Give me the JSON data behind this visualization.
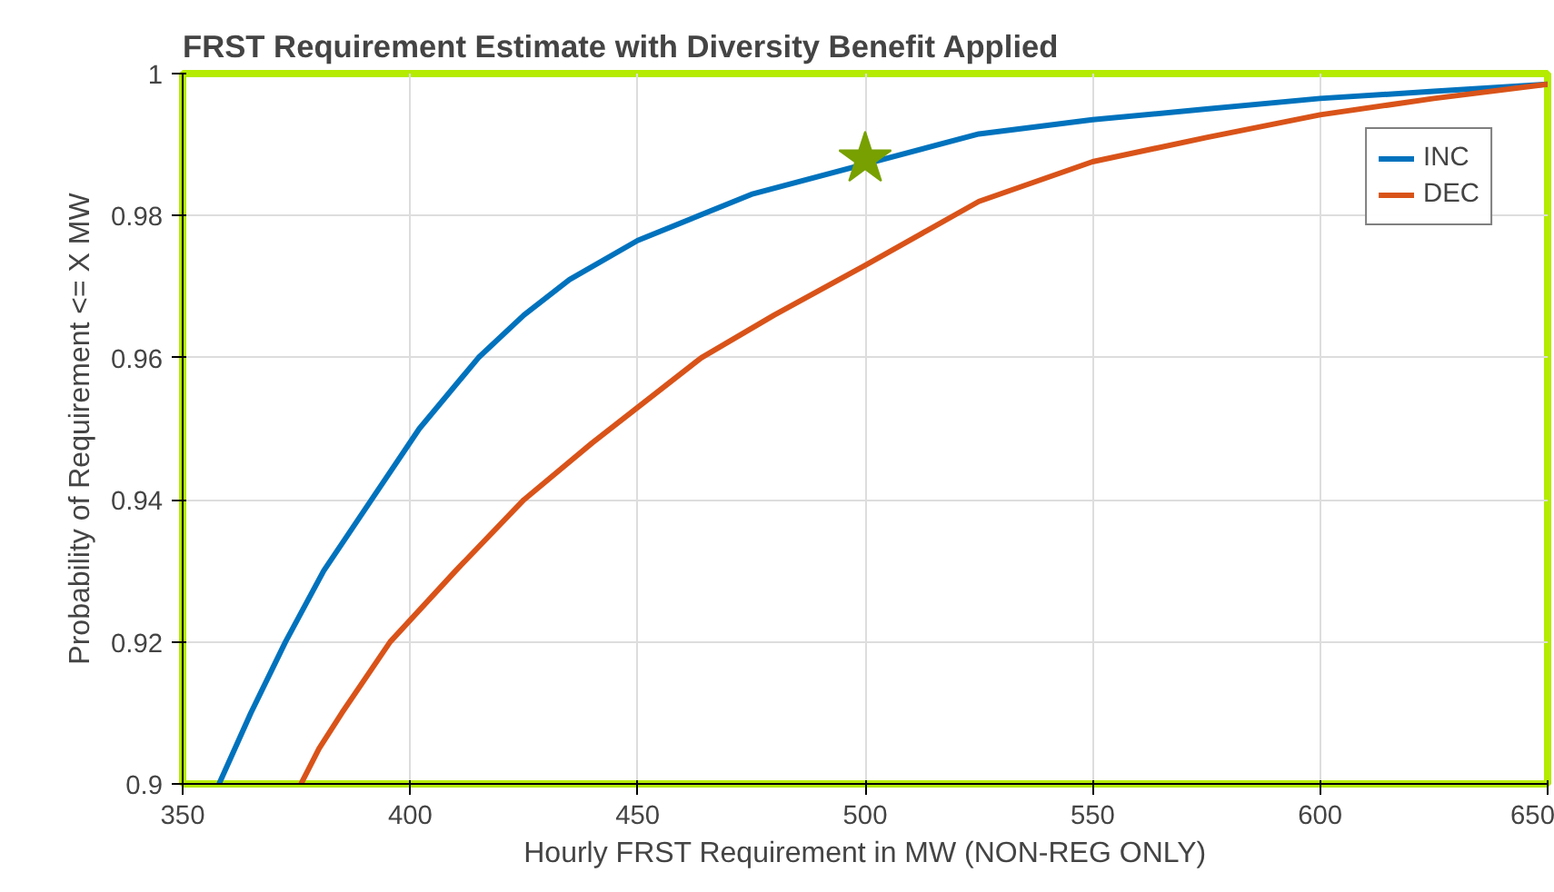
{
  "chart_data": {
    "type": "line",
    "title": "FRST Requirement Estimate with Diversity Benefit Applied",
    "xlabel": "Hourly FRST Requirement in MW (NON-REG ONLY)",
    "ylabel": "Probability of Requirement <= X MW",
    "xlim": [
      350,
      650
    ],
    "ylim": [
      0.9,
      1
    ],
    "xticks": [
      350,
      400,
      450,
      500,
      550,
      600,
      650
    ],
    "yticks": [
      {
        "value": 0.9,
        "label": "0.9"
      },
      0.92,
      0.94,
      0.96,
      0.98,
      {
        "value": 1,
        "label": "1"
      }
    ],
    "grid": true,
    "legend": "top right",
    "series": [
      {
        "name": "INC",
        "color": "#0072bd",
        "x": [
          358,
          365,
          372.6,
          381,
          391.5,
          402,
          415,
          425,
          435,
          450,
          475,
          525,
          550,
          575,
          600,
          625,
          650
        ],
        "values": [
          0.9,
          0.91,
          0.92,
          0.93,
          0.94,
          0.95,
          0.96,
          0.966,
          0.971,
          0.9765,
          0.983,
          0.9915,
          0.9935,
          0.995,
          0.9965,
          0.9975,
          0.9985
        ]
      },
      {
        "name": "DEC",
        "color": "#d95319",
        "x": [
          376,
          380,
          385,
          395.6,
          410,
          425,
          440,
          464,
          480,
          500,
          525,
          550,
          575,
          600,
          625,
          650
        ],
        "values": [
          0.9,
          0.905,
          0.91,
          0.92,
          0.93,
          0.94,
          0.948,
          0.96,
          0.966,
          0.973,
          0.982,
          0.9876,
          0.991,
          0.9942,
          0.9965,
          0.9985
        ]
      },
      {
        "type": "scatter",
        "marker": "star",
        "color": "#77a000",
        "x": [
          500
        ],
        "values": [
          0.988
        ]
      }
    ]
  }
}
